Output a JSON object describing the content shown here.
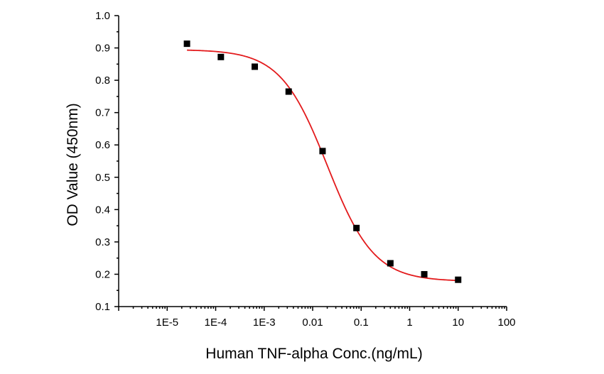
{
  "chart_data": {
    "type": "scatter",
    "title": "",
    "xlabel": "Human TNF-alpha Conc.(ng/mL)",
    "ylabel": "OD Value (450nm)",
    "x_scale": "log",
    "xlim": [
      1e-06,
      100
    ],
    "ylim": [
      0.1,
      1.0
    ],
    "x_ticks": [
      1e-05,
      0.0001,
      0.001,
      0.01,
      0.1,
      1,
      10,
      100
    ],
    "x_tick_labels": [
      "1E-5",
      "1E-4",
      "1E-3",
      "0.01",
      "0.1",
      "1",
      "10",
      "100"
    ],
    "y_ticks": [
      0.1,
      0.2,
      0.3,
      0.4,
      0.5,
      0.6,
      0.7,
      0.8,
      0.9,
      1.0
    ],
    "y_tick_labels": [
      "0.1",
      "0.2",
      "0.3",
      "0.4",
      "0.5",
      "0.6",
      "0.7",
      "0.8",
      "0.9",
      "1.0"
    ],
    "grid": false,
    "legend": false,
    "series": [
      {
        "kind": "points",
        "marker": "square",
        "color": "#000000",
        "x": [
          2.56e-05,
          0.000128,
          0.00064,
          0.0032,
          0.016,
          0.08,
          0.4,
          2,
          10
        ],
        "y": [
          0.913,
          0.872,
          0.842,
          0.765,
          0.581,
          0.343,
          0.234,
          0.2,
          0.183
        ]
      },
      {
        "kind": "fit_curve",
        "color": "#e31a1c",
        "x_range": [
          2.56e-05,
          10
        ],
        "model": "four-parameter logistic",
        "params": {
          "top": 0.895,
          "bottom": 0.178,
          "ec50": 0.02,
          "hill": 0.9
        }
      }
    ]
  }
}
